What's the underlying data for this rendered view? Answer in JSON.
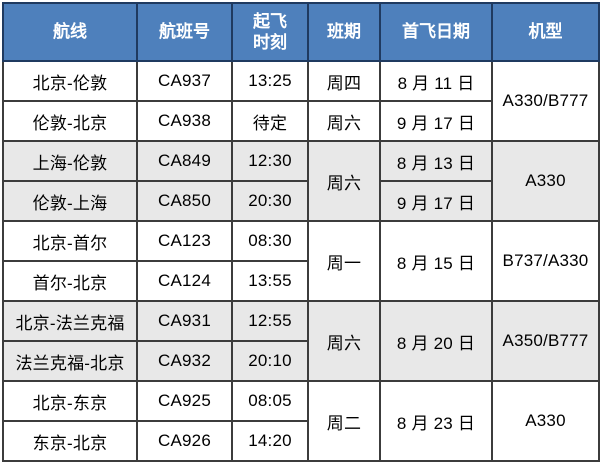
{
  "colors": {
    "header_bg": "#4e80bc",
    "header_text": "#ffffff",
    "header_border": "#1f3a60",
    "body_border": "#3c3c3c",
    "body_text": "#000000",
    "row_bg": "#ffffff",
    "row_alt_bg": "#e8e8e8"
  },
  "table": {
    "header": {
      "route": "航线",
      "flight_no": "航班号",
      "departure_time": "起飞\n时刻",
      "days": "班期",
      "first_flight_date": "首飞日期",
      "aircraft": "机型"
    },
    "rows": [
      {
        "route": "北京-伦敦",
        "flight_no": "CA937",
        "departure_time": "13:25",
        "days": "周四",
        "first_flight_date": "8 月 11 日",
        "aircraft": "A330/B777"
      },
      {
        "route": "伦敦-北京",
        "flight_no": "CA938",
        "departure_time": "待定",
        "days": "周六",
        "first_flight_date": "9 月 17 日"
      },
      {
        "route": "上海-伦敦",
        "flight_no": "CA849",
        "departure_time": "12:30",
        "days": "周六",
        "first_flight_date": "8 月 13 日",
        "aircraft": "A330"
      },
      {
        "route": "伦敦-上海",
        "flight_no": "CA850",
        "departure_time": "20:30",
        "first_flight_date": "9 月 17 日"
      },
      {
        "route": "北京-首尔",
        "flight_no": "CA123",
        "departure_time": "08:30",
        "days": "周一",
        "first_flight_date": "8 月 15 日",
        "aircraft": "B737/A330"
      },
      {
        "route": "首尔-北京",
        "flight_no": "CA124",
        "departure_time": "13:55"
      },
      {
        "route": "北京-法兰克福",
        "flight_no": "CA931",
        "departure_time": "12:55",
        "days": "周六",
        "first_flight_date": "8 月 20 日",
        "aircraft": "A350/B777"
      },
      {
        "route": "法兰克福-北京",
        "flight_no": "CA932",
        "departure_time": "20:10"
      },
      {
        "route": "北京-东京",
        "flight_no": "CA925",
        "departure_time": "08:05",
        "days": "周二",
        "first_flight_date": "8 月 23 日",
        "aircraft": "A330"
      },
      {
        "route": "东京-北京",
        "flight_no": "CA926",
        "departure_time": "14:20"
      }
    ]
  }
}
